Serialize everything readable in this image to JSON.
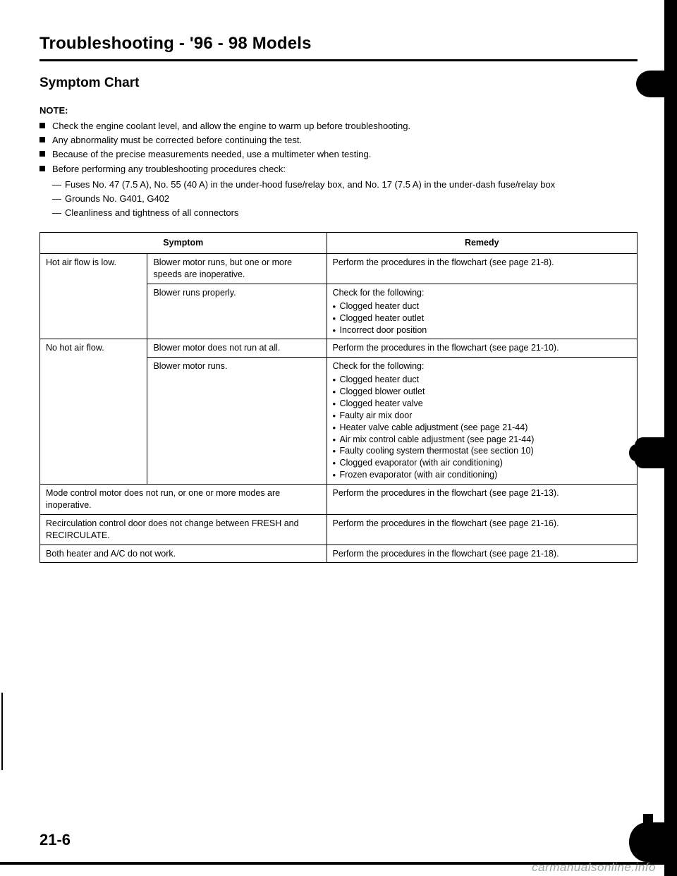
{
  "title": "Troubleshooting - '96 - 98 Models",
  "section_title": "Symptom Chart",
  "note_label": "NOTE:",
  "notes": [
    "Check the engine coolant level, and allow the engine to warm up before troubleshooting.",
    "Any abnormality must be corrected before continuing the test.",
    "Because of the precise measurements needed, use a multimeter when testing.",
    "Before performing any troubleshooting procedures check:"
  ],
  "sub_notes": [
    "Fuses No. 47 (7.5 A), No. 55 (40 A) in the under-hood fuse/relay box, and No. 17 (7.5 A) in the under-dash fuse/relay box",
    "Grounds No. G401, G402",
    "Cleanliness and tightness of all connectors"
  ],
  "table": {
    "headers": {
      "symptom": "Symptom",
      "remedy": "Remedy"
    },
    "rows": [
      {
        "symptom_main": "Hot air flow is low.",
        "symptom_sub": "Blower motor runs, but one or more speeds are inoperative.",
        "remedy_text": "Perform the procedures in the flowchart (see page 21-8).",
        "remedy_items": []
      },
      {
        "symptom_main": "",
        "symptom_sub": "Blower runs properly.",
        "remedy_text": "Check for the following:",
        "remedy_items": [
          "Clogged heater duct",
          "Clogged heater outlet",
          "Incorrect door position"
        ]
      },
      {
        "symptom_main": "No hot air flow.",
        "symptom_sub": "Blower motor does not run at all.",
        "remedy_text": "Perform the procedures in the flowchart (see page 21-10).",
        "remedy_items": []
      },
      {
        "symptom_main": "",
        "symptom_sub": "Blower motor runs.",
        "remedy_text": "Check for the following:",
        "remedy_items": [
          "Clogged heater duct",
          "Clogged blower outlet",
          "Clogged heater valve",
          "Faulty air mix door",
          "Heater valve cable adjustment (see page 21-44)",
          "Air mix control cable adjustment (see page 21-44)",
          "Faulty cooling system thermostat (see section 10)",
          "Clogged evaporator (with air conditioning)",
          "Frozen evaporator (with air conditioning)"
        ]
      },
      {
        "symptom_full": "Mode control motor does not run, or one or more modes are inoperative.",
        "remedy_text": "Perform the procedures in the flowchart (see page 21-13).",
        "remedy_items": []
      },
      {
        "symptom_full": "Recirculation control door does not change between FRESH and RECIRCULATE.",
        "remedy_text": "Perform the procedures in the flowchart (see page 21-16).",
        "remedy_items": []
      },
      {
        "symptom_full": "Both heater and A/C do not work.",
        "remedy_text": "Perform the procedures in the flowchart (see page 21-18).",
        "remedy_items": []
      }
    ]
  },
  "page_number": "21-6",
  "watermark": "carmanualsonline.info"
}
